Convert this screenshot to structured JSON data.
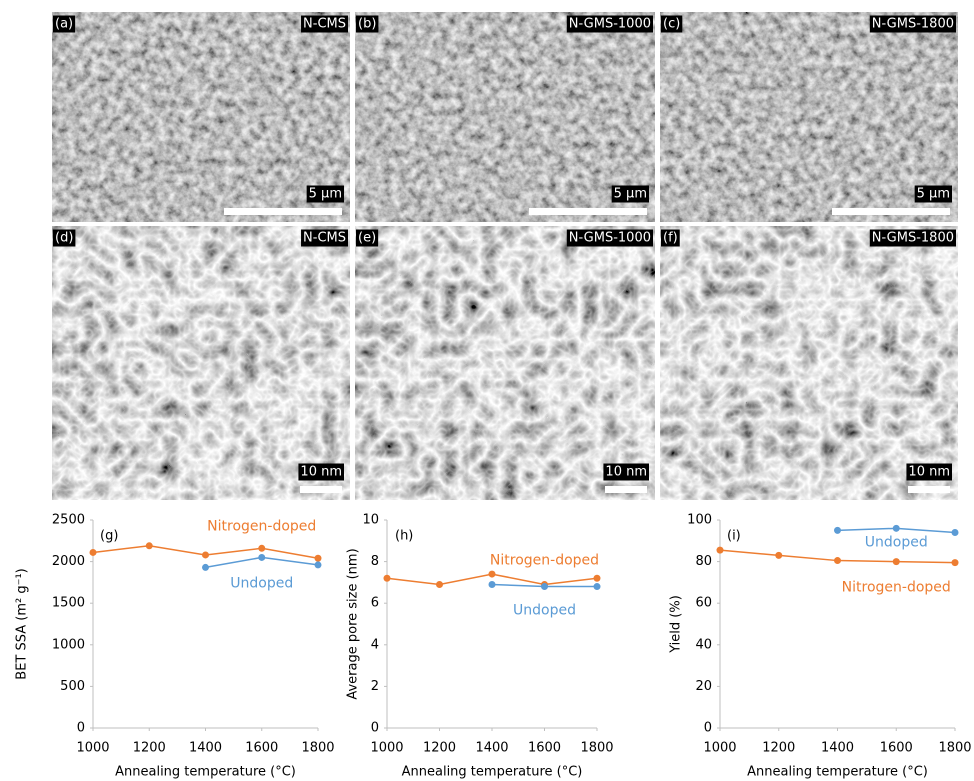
{
  "panels": [
    {
      "tag": "(a)",
      "label": "N-CMS",
      "scale": "5 µm"
    },
    {
      "tag": "(b)",
      "label": "N-GMS-1000",
      "scale": "5 µm"
    },
    {
      "tag": "(c)",
      "label": "N-GMS-1800",
      "scale": "5 µm"
    },
    {
      "tag": "(d)",
      "label": "N-CMS",
      "scale": "10 nm"
    },
    {
      "tag": "(e)",
      "label": "N-GMS-1000",
      "scale": "10 nm"
    },
    {
      "tag": "(f)",
      "label": "N-GMS-1800",
      "scale": "10 nm"
    }
  ],
  "chart_data": [
    {
      "type": "line",
      "tag": "(g)",
      "y_label": "BET SSA (m² g⁻¹)",
      "x_label": "Annealing temperature (°C)",
      "x": [
        1000,
        1200,
        1400,
        1600,
        1800
      ],
      "xlim": [
        1000,
        1800
      ],
      "xticks": [
        1000,
        1200,
        1400,
        1600,
        1800
      ],
      "ylim": [
        0,
        2500
      ],
      "yticks": [
        0,
        500,
        1000,
        1500,
        2000,
        2500
      ],
      "series": [
        {
          "name": "Nitrogen-doped",
          "color": "#ed7d31",
          "values": [
            2110,
            2190,
            2080,
            2160,
            2040
          ]
        },
        {
          "name": "Undoped",
          "color": "#5b9bd5",
          "values": [
            null,
            null,
            1930,
            2050,
            1960
          ]
        }
      ]
    },
    {
      "type": "line",
      "tag": "(h)",
      "y_label": "Average pore size (nm)",
      "x_label": "Annealing temperature (°C)",
      "x": [
        1000,
        1200,
        1400,
        1600,
        1800
      ],
      "xlim": [
        1000,
        1800
      ],
      "xticks": [
        1000,
        1200,
        1400,
        1600,
        1800
      ],
      "ylim": [
        0,
        10
      ],
      "yticks": [
        0,
        2,
        4,
        6,
        8,
        10
      ],
      "series": [
        {
          "name": "Nitrogen-doped",
          "color": "#ed7d31",
          "values": [
            7.2,
            6.9,
            7.4,
            6.9,
            7.2
          ]
        },
        {
          "name": "Undoped",
          "color": "#5b9bd5",
          "values": [
            null,
            null,
            6.9,
            6.8,
            6.8
          ]
        }
      ]
    },
    {
      "type": "line",
      "tag": "(i)",
      "y_label": "Yield (%)",
      "x_label": "Annealing temperature (°C)",
      "x": [
        1000,
        1200,
        1400,
        1600,
        1800
      ],
      "xlim": [
        1000,
        1800
      ],
      "xticks": [
        1000,
        1200,
        1400,
        1600,
        1800
      ],
      "ylim": [
        0,
        100
      ],
      "yticks": [
        0,
        20,
        40,
        60,
        80,
        100
      ],
      "series": [
        {
          "name": "Nitrogen-doped",
          "color": "#ed7d31",
          "values": [
            85.5,
            83,
            80.5,
            80,
            79.5
          ]
        },
        {
          "name": "Undoped",
          "color": "#5b9bd5",
          "values": [
            null,
            null,
            95,
            96,
            94
          ]
        }
      ]
    }
  ]
}
